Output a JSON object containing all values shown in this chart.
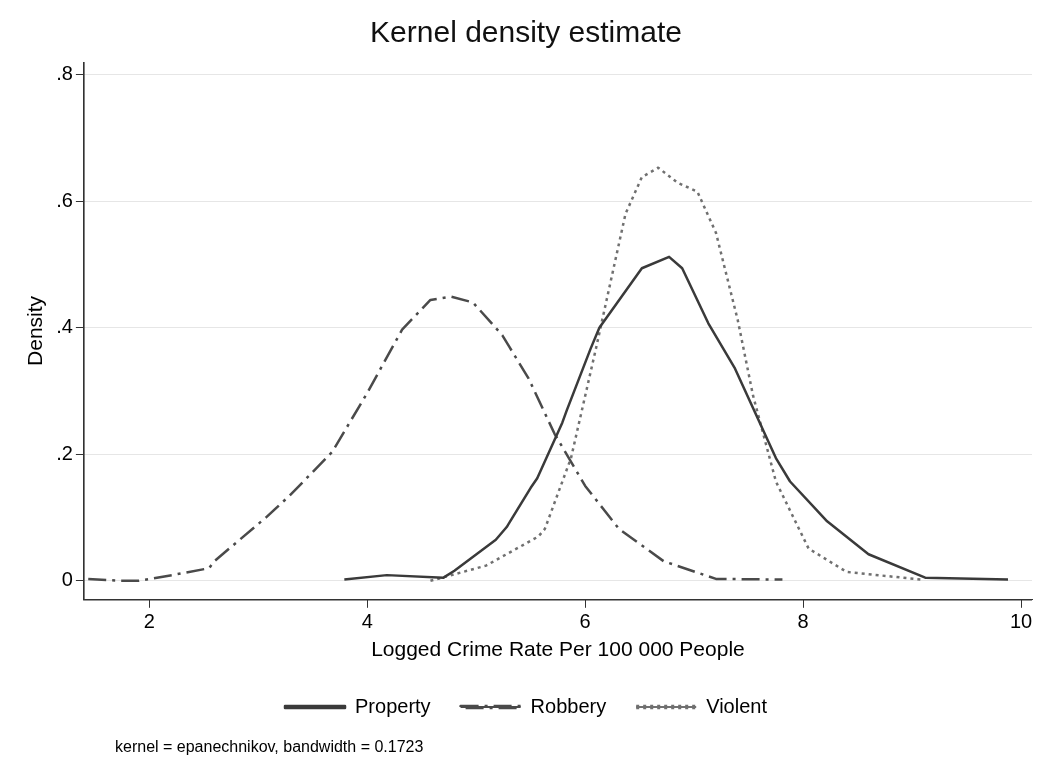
{
  "chart_data": {
    "type": "line",
    "title": "Kernel density estimate",
    "xlabel": "Logged Crime Rate Per 100 000 People",
    "ylabel": "Density",
    "xlim": [
      1.4,
      10.1
    ],
    "xticks": [
      2,
      4,
      6,
      8,
      10
    ],
    "ylim": [
      -0.03,
      0.82
    ],
    "yticks": [
      {
        "value": 0,
        "label": "0"
      },
      {
        "value": 0.2,
        "label": ".2"
      },
      {
        "value": 0.4,
        "label": ".4"
      },
      {
        "value": 0.6,
        "label": ".6"
      },
      {
        "value": 0.8,
        "label": ".8"
      }
    ],
    "grid": "y",
    "legend": "bottom",
    "marker": "none",
    "annotations": [
      "kernel = epanechnikov, bandwidth = 0.1723"
    ],
    "series": [
      {
        "name": "Property",
        "color": "#3a3a3a",
        "line_style": "solid",
        "x": [
          3.79,
          4.18,
          4.7,
          4.8,
          5.18,
          5.28,
          5.5,
          5.56,
          5.79,
          5.83,
          6.05,
          6.13,
          6.52,
          6.77,
          6.89,
          7.13,
          7.37,
          7.75,
          7.88,
          8.22,
          8.6,
          9.12,
          9.88
        ],
        "values": [
          0.002,
          0.009,
          0.005,
          0.016,
          0.065,
          0.085,
          0.147,
          0.162,
          0.25,
          0.269,
          0.367,
          0.4,
          0.494,
          0.512,
          0.494,
          0.407,
          0.337,
          0.194,
          0.157,
          0.094,
          0.042,
          0.005,
          0.002
        ]
      },
      {
        "name": "Robbery",
        "color": "#4a4a4a",
        "line_style": "dashed",
        "x": [
          1.44,
          1.73,
          1.9,
          2.21,
          2.55,
          2.59,
          3.07,
          3.29,
          3.68,
          4.0,
          4.32,
          4.58,
          4.77,
          4.97,
          5.24,
          5.48,
          5.72,
          6.0,
          6.31,
          6.72,
          7.2,
          7.81
        ],
        "values": [
          0.003,
          0,
          0,
          0.009,
          0.02,
          0.03,
          0.1,
          0.135,
          0.204,
          0.297,
          0.397,
          0.444,
          0.449,
          0.44,
          0.388,
          0.32,
          0.232,
          0.15,
          0.082,
          0.031,
          0.003,
          0.002
        ]
      },
      {
        "name": "Violent",
        "color": "#707070",
        "line_style": "dotted",
        "x": [
          4.58,
          5.09,
          5.57,
          5.63,
          5.87,
          6.1,
          6.37,
          6.52,
          6.67,
          6.85,
          7.03,
          7.2,
          7.4,
          7.54,
          7.75,
          8.05,
          8.4,
          9.08
        ],
        "values": [
          0,
          0.024,
          0.07,
          0.082,
          0.194,
          0.368,
          0.58,
          0.638,
          0.653,
          0.629,
          0.615,
          0.55,
          0.412,
          0.293,
          0.157,
          0.051,
          0.014,
          0.002
        ]
      }
    ]
  }
}
